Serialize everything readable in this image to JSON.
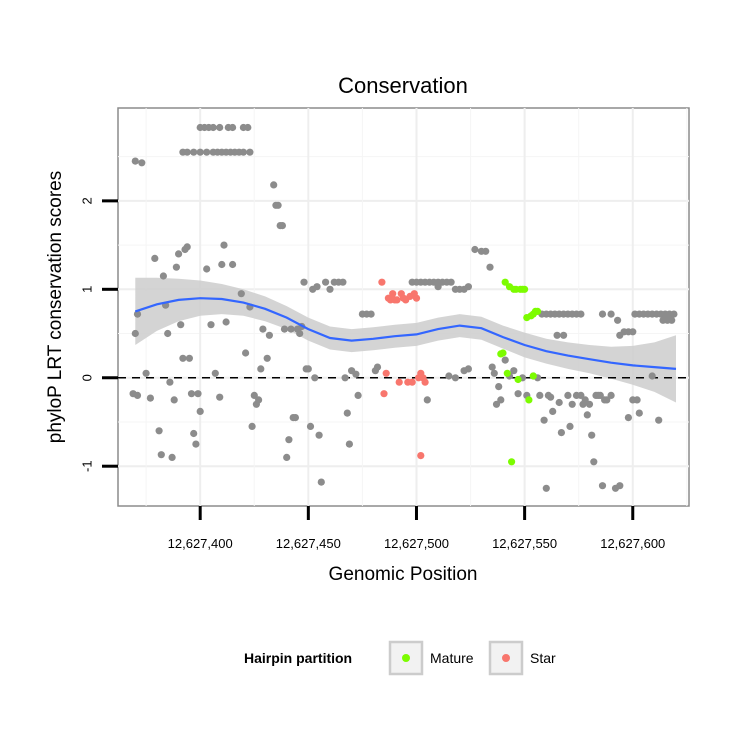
{
  "chart_data": {
    "type": "scatter",
    "title": "Conservation",
    "xlabel": "Genomic Position",
    "ylabel": "phyloP LRT conservation scores",
    "xlim": [
      12627362,
      12627626
    ],
    "ylim": [
      -1.45,
      3.05
    ],
    "x_ticks": [
      12627400,
      12627450,
      12627500,
      12627550,
      12627600
    ],
    "x_tick_labels": [
      "12,627,400",
      "12,627,450",
      "12,627,500",
      "12,627,550",
      "12,627,600"
    ],
    "y_ticks": [
      -1,
      0,
      1,
      2
    ],
    "y_tick_labels": [
      "-1",
      "0",
      "1",
      "2"
    ],
    "reference_line": {
      "y": 0,
      "style": "dashed"
    },
    "legend": {
      "title": "Hairpin partition",
      "position": "bottom",
      "entries": [
        {
          "label": "Mature",
          "color": "#7CFC00"
        },
        {
          "label": "Star",
          "color": "#F8766D"
        }
      ]
    },
    "colors": {
      "other": "#8c8c8c",
      "Mature": "#7CFC00",
      "Star": "#F8766D",
      "smooth": "#3366FF",
      "ribbon": "#cccccc"
    },
    "series": [
      {
        "name": "Other",
        "points": [
          [
            12627370,
            2.45
          ],
          [
            12627373,
            2.43
          ],
          [
            12627370,
            0.5
          ],
          [
            12627371,
            0.72
          ],
          [
            12627369,
            -0.18
          ],
          [
            12627371,
            -0.2
          ],
          [
            12627375,
            0.05
          ],
          [
            12627377,
            -0.23
          ],
          [
            12627379,
            1.35
          ],
          [
            12627381,
            -0.6
          ],
          [
            12627382,
            -0.87
          ],
          [
            12627383,
            1.15
          ],
          [
            12627384,
            0.82
          ],
          [
            12627385,
            0.5
          ],
          [
            12627386,
            -0.05
          ],
          [
            12627387,
            -0.9
          ],
          [
            12627388,
            -0.25
          ],
          [
            12627389,
            1.25
          ],
          [
            12627390,
            1.4
          ],
          [
            12627391,
            0.6
          ],
          [
            12627392,
            0.22
          ],
          [
            12627393,
            1.45
          ],
          [
            12627394,
            1.48
          ],
          [
            12627395,
            0.22
          ],
          [
            12627396,
            -0.18
          ],
          [
            12627397,
            -0.63
          ],
          [
            12627398,
            -0.75
          ],
          [
            12627399,
            -0.18
          ],
          [
            12627400,
            -0.38
          ],
          [
            12627400,
            2.83
          ],
          [
            12627402,
            2.83
          ],
          [
            12627404,
            2.83
          ],
          [
            12627406,
            2.83
          ],
          [
            12627409,
            2.83
          ],
          [
            12627413,
            2.83
          ],
          [
            12627415,
            2.83
          ],
          [
            12627420,
            2.83
          ],
          [
            12627422,
            2.83
          ],
          [
            12627392,
            2.55
          ],
          [
            12627394,
            2.55
          ],
          [
            12627397,
            2.55
          ],
          [
            12627400,
            2.55
          ],
          [
            12627403,
            2.55
          ],
          [
            12627406,
            2.55
          ],
          [
            12627408,
            2.55
          ],
          [
            12627410,
            2.55
          ],
          [
            12627412,
            2.55
          ],
          [
            12627414,
            2.55
          ],
          [
            12627416,
            2.55
          ],
          [
            12627418,
            2.55
          ],
          [
            12627420,
            2.55
          ],
          [
            12627423,
            2.55
          ],
          [
            12627403,
            1.23
          ],
          [
            12627405,
            0.6
          ],
          [
            12627407,
            0.05
          ],
          [
            12627409,
            -0.22
          ],
          [
            12627410,
            1.28
          ],
          [
            12627411,
            1.5
          ],
          [
            12627412,
            0.63
          ],
          [
            12627415,
            1.28
          ],
          [
            12627419,
            0.95
          ],
          [
            12627421,
            0.28
          ],
          [
            12627423,
            0.8
          ],
          [
            12627424,
            -0.55
          ],
          [
            12627425,
            -0.2
          ],
          [
            12627426,
            -0.3
          ],
          [
            12627427,
            -0.25
          ],
          [
            12627428,
            0.1
          ],
          [
            12627429,
            0.55
          ],
          [
            12627431,
            0.22
          ],
          [
            12627432,
            0.48
          ],
          [
            12627434,
            2.18
          ],
          [
            12627435,
            1.95
          ],
          [
            12627436,
            1.95
          ],
          [
            12627437,
            1.72
          ],
          [
            12627438,
            1.72
          ],
          [
            12627439,
            0.55
          ],
          [
            12627440,
            -0.9
          ],
          [
            12627441,
            -0.7
          ],
          [
            12627442,
            0.55
          ],
          [
            12627443,
            -0.45
          ],
          [
            12627444,
            -0.45
          ],
          [
            12627445,
            0.55
          ],
          [
            12627446,
            0.5
          ],
          [
            12627447,
            0.58
          ],
          [
            12627448,
            1.08
          ],
          [
            12627449,
            0.1
          ],
          [
            12627450,
            0.1
          ],
          [
            12627451,
            -0.55
          ],
          [
            12627452,
            1.0
          ],
          [
            12627453,
            0.0
          ],
          [
            12627454,
            1.03
          ],
          [
            12627455,
            -0.65
          ],
          [
            12627456,
            -1.18
          ],
          [
            12627458,
            1.08
          ],
          [
            12627460,
            1.0
          ],
          [
            12627462,
            1.08
          ],
          [
            12627464,
            1.08
          ],
          [
            12627466,
            1.08
          ],
          [
            12627467,
            0.0
          ],
          [
            12627468,
            -0.4
          ],
          [
            12627469,
            -0.75
          ],
          [
            12627470,
            0.08
          ],
          [
            12627472,
            0.04
          ],
          [
            12627473,
            -0.2
          ],
          [
            12627475,
            0.72
          ],
          [
            12627477,
            0.72
          ],
          [
            12627479,
            0.72
          ],
          [
            12627481,
            0.08
          ],
          [
            12627482,
            0.12
          ],
          [
            12627498,
            1.08
          ],
          [
            12627500,
            1.08
          ],
          [
            12627502,
            1.08
          ],
          [
            12627504,
            1.08
          ],
          [
            12627506,
            1.08
          ],
          [
            12627508,
            1.08
          ],
          [
            12627510,
            1.08
          ],
          [
            12627512,
            1.08
          ],
          [
            12627514,
            1.08
          ],
          [
            12627516,
            1.08
          ],
          [
            12627518,
            1.0
          ],
          [
            12627520,
            1.0
          ],
          [
            12627522,
            1.0
          ],
          [
            12627524,
            1.03
          ],
          [
            12627505,
            -0.25
          ],
          [
            12627510,
            1.03
          ],
          [
            12627515,
            0.02
          ],
          [
            12627518,
            0.0
          ],
          [
            12627522,
            0.08
          ],
          [
            12627524,
            0.1
          ],
          [
            12627527,
            1.45
          ],
          [
            12627530,
            1.43
          ],
          [
            12627532,
            1.43
          ],
          [
            12627534,
            1.25
          ],
          [
            12627535,
            0.12
          ],
          [
            12627536,
            0.05
          ],
          [
            12627537,
            -0.3
          ],
          [
            12627538,
            -0.1
          ],
          [
            12627539,
            -0.25
          ],
          [
            12627541,
            0.2
          ],
          [
            12627543,
            0.02
          ],
          [
            12627545,
            0.08
          ],
          [
            12627547,
            -0.18
          ],
          [
            12627549,
            0.0
          ],
          [
            12627551,
            -0.2
          ],
          [
            12627554,
            0.02
          ],
          [
            12627556,
            0.0
          ],
          [
            12627558,
            0.72
          ],
          [
            12627560,
            0.72
          ],
          [
            12627562,
            0.72
          ],
          [
            12627564,
            0.72
          ],
          [
            12627566,
            0.72
          ],
          [
            12627568,
            0.72
          ],
          [
            12627570,
            0.72
          ],
          [
            12627572,
            0.72
          ],
          [
            12627574,
            0.72
          ],
          [
            12627576,
            0.72
          ],
          [
            12627557,
            -0.2
          ],
          [
            12627559,
            -0.48
          ],
          [
            12627560,
            -1.25
          ],
          [
            12627561,
            -0.2
          ],
          [
            12627562,
            -0.22
          ],
          [
            12627563,
            -0.38
          ],
          [
            12627565,
            0.48
          ],
          [
            12627566,
            -0.28
          ],
          [
            12627567,
            -0.62
          ],
          [
            12627568,
            0.48
          ],
          [
            12627570,
            -0.2
          ],
          [
            12627571,
            -0.55
          ],
          [
            12627572,
            -0.3
          ],
          [
            12627574,
            -0.2
          ],
          [
            12627576,
            -0.2
          ],
          [
            12627577,
            -0.3
          ],
          [
            12627578,
            -0.25
          ],
          [
            12627579,
            -0.42
          ],
          [
            12627580,
            -0.3
          ],
          [
            12627581,
            -0.65
          ],
          [
            12627582,
            -0.95
          ],
          [
            12627583,
            -0.2
          ],
          [
            12627584,
            -0.2
          ],
          [
            12627585,
            -0.2
          ],
          [
            12627586,
            -1.22
          ],
          [
            12627587,
            -0.25
          ],
          [
            12627588,
            -0.25
          ],
          [
            12627590,
            -0.2
          ],
          [
            12627592,
            -1.25
          ],
          [
            12627594,
            -1.22
          ],
          [
            12627586,
            0.72
          ],
          [
            12627590,
            0.72
          ],
          [
            12627593,
            0.65
          ],
          [
            12627594,
            0.48
          ],
          [
            12627596,
            0.52
          ],
          [
            12627598,
            0.52
          ],
          [
            12627600,
            0.52
          ],
          [
            12627598,
            -0.45
          ],
          [
            12627600,
            -0.25
          ],
          [
            12627602,
            -0.25
          ],
          [
            12627603,
            -0.4
          ],
          [
            12627601,
            0.72
          ],
          [
            12627603,
            0.72
          ],
          [
            12627605,
            0.72
          ],
          [
            12627607,
            0.72
          ],
          [
            12627609,
            0.72
          ],
          [
            12627611,
            0.72
          ],
          [
            12627613,
            0.72
          ],
          [
            12627615,
            0.72
          ],
          [
            12627617,
            0.72
          ],
          [
            12627619,
            0.72
          ],
          [
            12627609,
            0.02
          ],
          [
            12627612,
            -0.48
          ],
          [
            12627614,
            0.65
          ],
          [
            12627616,
            0.65
          ],
          [
            12627618,
            0.65
          ]
        ]
      },
      {
        "name": "Mature",
        "points": [
          [
            12627539,
            0.27
          ],
          [
            12627540,
            0.28
          ],
          [
            12627541,
            1.08
          ],
          [
            12627542,
            0.05
          ],
          [
            12627543,
            1.03
          ],
          [
            12627544,
            -0.95
          ],
          [
            12627545,
            1.0
          ],
          [
            12627546,
            1.0
          ],
          [
            12627547,
            -0.02
          ],
          [
            12627548,
            1.0
          ],
          [
            12627549,
            1.0
          ],
          [
            12627550,
            1.0
          ],
          [
            12627551,
            0.68
          ],
          [
            12627552,
            -0.25
          ],
          [
            12627553,
            0.7
          ],
          [
            12627554,
            0.72
          ],
          [
            12627555,
            0.75
          ],
          [
            12627556,
            0.75
          ],
          [
            12627554,
            0.02
          ]
        ]
      },
      {
        "name": "Star",
        "points": [
          [
            12627484,
            1.08
          ],
          [
            12627486,
            0.05
          ],
          [
            12627487,
            0.9
          ],
          [
            12627488,
            0.88
          ],
          [
            12627489,
            0.95
          ],
          [
            12627490,
            0.88
          ],
          [
            12627491,
            0.88
          ],
          [
            12627492,
            -0.05
          ],
          [
            12627493,
            0.95
          ],
          [
            12627494,
            0.9
          ],
          [
            12627495,
            0.88
          ],
          [
            12627496,
            -0.05
          ],
          [
            12627497,
            0.92
          ],
          [
            12627498,
            -0.05
          ],
          [
            12627499,
            0.95
          ],
          [
            12627500,
            0.9
          ],
          [
            12627501,
            0.0
          ],
          [
            12627502,
            0.05
          ],
          [
            12627503,
            0.0
          ],
          [
            12627504,
            -0.05
          ],
          [
            12627485,
            -0.18
          ],
          [
            12627502,
            -0.88
          ]
        ]
      }
    ],
    "smooth": {
      "method": "loess",
      "points": [
        [
          12627370,
          0.75
        ],
        [
          12627380,
          0.83
        ],
        [
          12627390,
          0.88
        ],
        [
          12627400,
          0.9
        ],
        [
          12627410,
          0.89
        ],
        [
          12627420,
          0.85
        ],
        [
          12627430,
          0.78
        ],
        [
          12627440,
          0.68
        ],
        [
          12627450,
          0.55
        ],
        [
          12627460,
          0.45
        ],
        [
          12627470,
          0.42
        ],
        [
          12627480,
          0.44
        ],
        [
          12627490,
          0.47
        ],
        [
          12627500,
          0.49
        ],
        [
          12627510,
          0.55
        ],
        [
          12627520,
          0.59
        ],
        [
          12627530,
          0.56
        ],
        [
          12627540,
          0.46
        ],
        [
          12627550,
          0.37
        ],
        [
          12627560,
          0.3
        ],
        [
          12627570,
          0.25
        ],
        [
          12627580,
          0.21
        ],
        [
          12627590,
          0.17
        ],
        [
          12627600,
          0.14
        ],
        [
          12627610,
          0.12
        ],
        [
          12627620,
          0.1
        ]
      ],
      "ci_halfwidth": [
        0.38,
        0.3,
        0.24,
        0.2,
        0.17,
        0.15,
        0.14,
        0.13,
        0.13,
        0.13,
        0.13,
        0.13,
        0.13,
        0.13,
        0.13,
        0.13,
        0.13,
        0.13,
        0.14,
        0.14,
        0.15,
        0.16,
        0.18,
        0.22,
        0.28,
        0.38
      ]
    }
  }
}
